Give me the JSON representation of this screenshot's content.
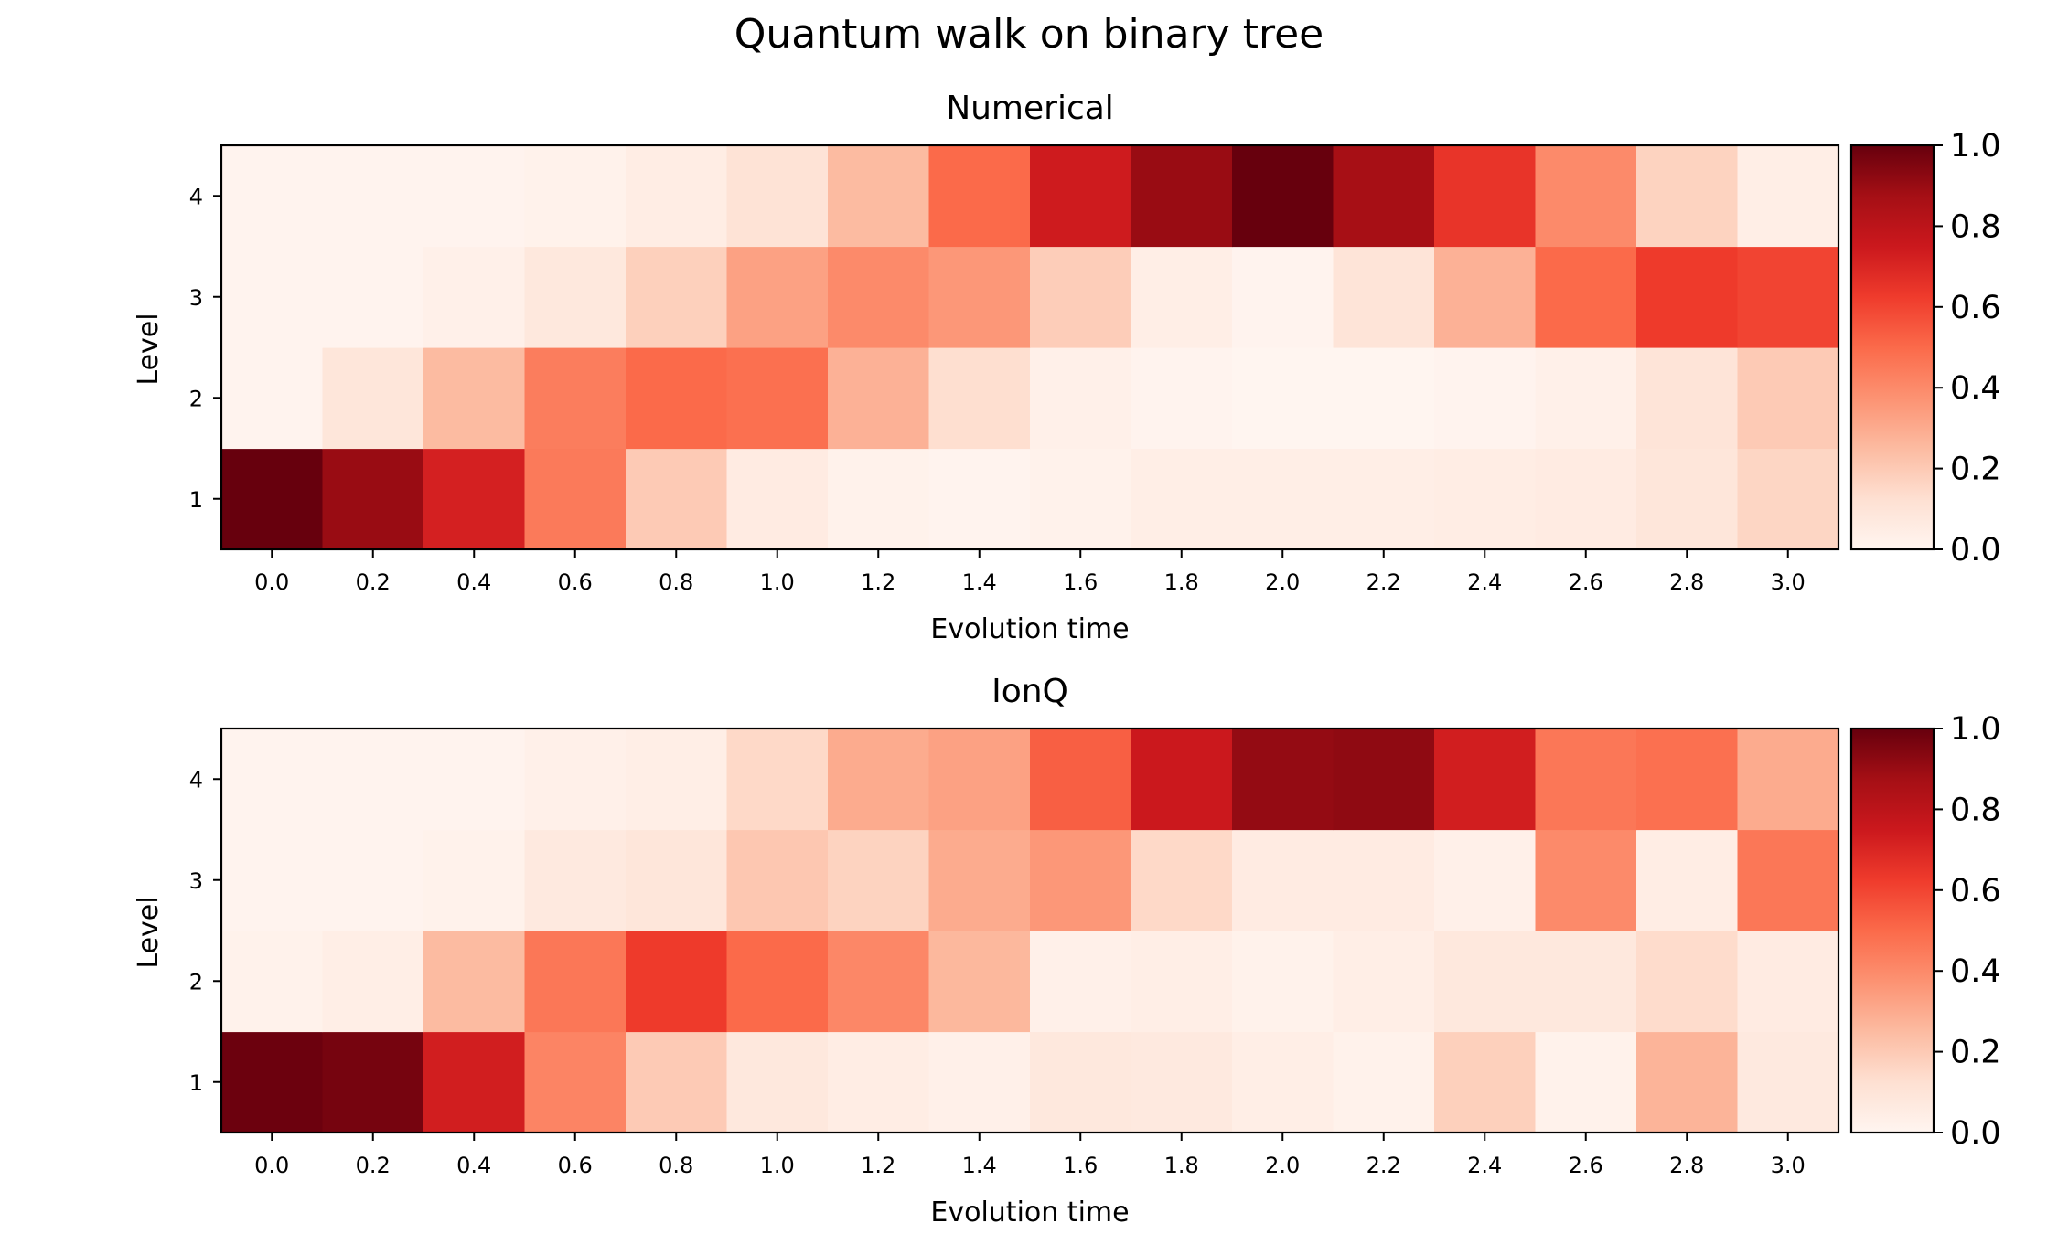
{
  "suptitle": "Quantum walk on binary tree",
  "chart_data": [
    {
      "type": "heatmap",
      "title": "Numerical",
      "xlabel": "Evolution time",
      "ylabel": "Level",
      "x": [
        0.0,
        0.2,
        0.4,
        0.6,
        0.8,
        1.0,
        1.2,
        1.4,
        1.6,
        1.8,
        2.0,
        2.2,
        2.4,
        2.6,
        2.8,
        3.0
      ],
      "x_tick_labels": [
        "0.0",
        "0.2",
        "0.4",
        "0.6",
        "0.8",
        "1.0",
        "1.2",
        "1.4",
        "1.6",
        "1.8",
        "2.0",
        "2.2",
        "2.4",
        "2.6",
        "2.8",
        "3.0"
      ],
      "y": [
        1,
        2,
        3,
        4
      ],
      "y_tick_labels": [
        "1",
        "2",
        "3",
        "4"
      ],
      "colormap": "Reds",
      "colorbar": {
        "range": [
          0.0,
          1.0
        ],
        "ticks": [
          "0.0",
          "0.2",
          "0.4",
          "0.6",
          "0.8",
          "1.0"
        ]
      },
      "values": [
        [
          1.0,
          0.9,
          0.72,
          0.45,
          0.2,
          0.06,
          0.02,
          0.01,
          0.02,
          0.04,
          0.04,
          0.04,
          0.05,
          0.06,
          0.09,
          0.16
        ],
        [
          0.01,
          0.09,
          0.25,
          0.44,
          0.5,
          0.48,
          0.28,
          0.13,
          0.03,
          0.01,
          0.0,
          0.0,
          0.01,
          0.03,
          0.1,
          0.2
        ],
        [
          0.01,
          0.01,
          0.03,
          0.08,
          0.18,
          0.33,
          0.4,
          0.36,
          0.19,
          0.04,
          0.01,
          0.1,
          0.28,
          0.5,
          0.63,
          0.6
        ],
        [
          0.01,
          0.01,
          0.01,
          0.02,
          0.05,
          0.11,
          0.25,
          0.5,
          0.74,
          0.9,
          1.0,
          0.87,
          0.65,
          0.4,
          0.17,
          0.04
        ]
      ]
    },
    {
      "type": "heatmap",
      "title": "IonQ",
      "xlabel": "Evolution time",
      "ylabel": "Level",
      "x": [
        0.0,
        0.2,
        0.4,
        0.6,
        0.8,
        1.0,
        1.2,
        1.4,
        1.6,
        1.8,
        2.0,
        2.2,
        2.4,
        2.6,
        2.8,
        3.0
      ],
      "x_tick_labels": [
        "0.0",
        "0.2",
        "0.4",
        "0.6",
        "0.8",
        "1.0",
        "1.2",
        "1.4",
        "1.6",
        "1.8",
        "2.0",
        "2.2",
        "2.4",
        "2.6",
        "2.8",
        "3.0"
      ],
      "y": [
        1,
        2,
        3,
        4
      ],
      "y_tick_labels": [
        "1",
        "2",
        "3",
        "4"
      ],
      "colormap": "Reds",
      "colorbar": {
        "range": [
          0.0,
          1.0
        ],
        "ticks": [
          "0.0",
          "0.2",
          "0.4",
          "0.6",
          "0.8",
          "1.0"
        ]
      },
      "values": [
        [
          0.99,
          0.97,
          0.73,
          0.42,
          0.2,
          0.08,
          0.05,
          0.03,
          0.08,
          0.07,
          0.04,
          0.02,
          0.18,
          0.02,
          0.27,
          0.07
        ],
        [
          0.02,
          0.04,
          0.25,
          0.46,
          0.63,
          0.5,
          0.41,
          0.26,
          0.03,
          0.04,
          0.02,
          0.04,
          0.08,
          0.08,
          0.14,
          0.06
        ],
        [
          0.01,
          0.01,
          0.02,
          0.07,
          0.09,
          0.21,
          0.17,
          0.3,
          0.36,
          0.15,
          0.06,
          0.06,
          0.03,
          0.4,
          0.05,
          0.46
        ],
        [
          0.01,
          0.01,
          0.01,
          0.03,
          0.04,
          0.15,
          0.3,
          0.33,
          0.53,
          0.75,
          0.91,
          0.92,
          0.73,
          0.46,
          0.48,
          0.3
        ]
      ]
    }
  ]
}
